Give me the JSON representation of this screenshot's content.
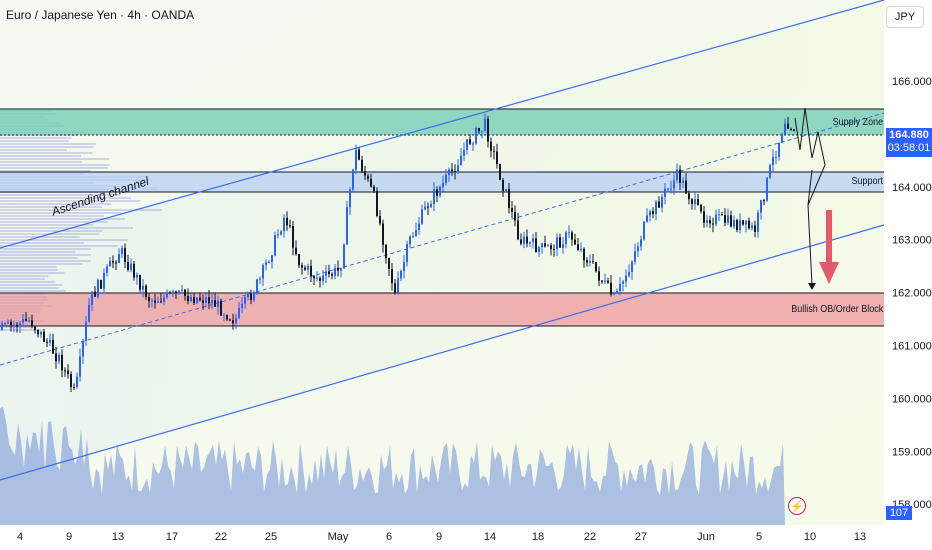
{
  "header": {
    "title": "Euro / Japanese Yen · 4h · OANDA",
    "currency_button": "JPY"
  },
  "price_axis": {
    "ticks": [
      "166.000",
      "165.000",
      "164.000",
      "163.000",
      "162.000",
      "161.000",
      "160.000",
      "159.000",
      "158.000"
    ],
    "last_price": "164.880",
    "countdown": "03:58:01",
    "volume_value": "107"
  },
  "time_axis": {
    "ticks": [
      "4",
      "9",
      "13",
      "17",
      "22",
      "25",
      "May",
      "6",
      "9",
      "14",
      "18",
      "22",
      "27",
      "Jun",
      "5",
      "10",
      "13"
    ]
  },
  "annotations": {
    "supply_zone": "Supply Zone",
    "support": "Support",
    "order_block": "Bullish OB/Order Block",
    "channel": "Ascending channel"
  },
  "colors": {
    "bull_candle": "#2962ff",
    "bear_candle": "#131722",
    "supply_zone": "#7ecfb8",
    "support_zone": "#b7cff3",
    "order_block": "#ee9a9e",
    "channel_line": "#3d6ee8",
    "arrow": "#e55a6a",
    "price_tag": "#2962ff"
  },
  "icons": {
    "flash": "lightning-icon"
  }
}
